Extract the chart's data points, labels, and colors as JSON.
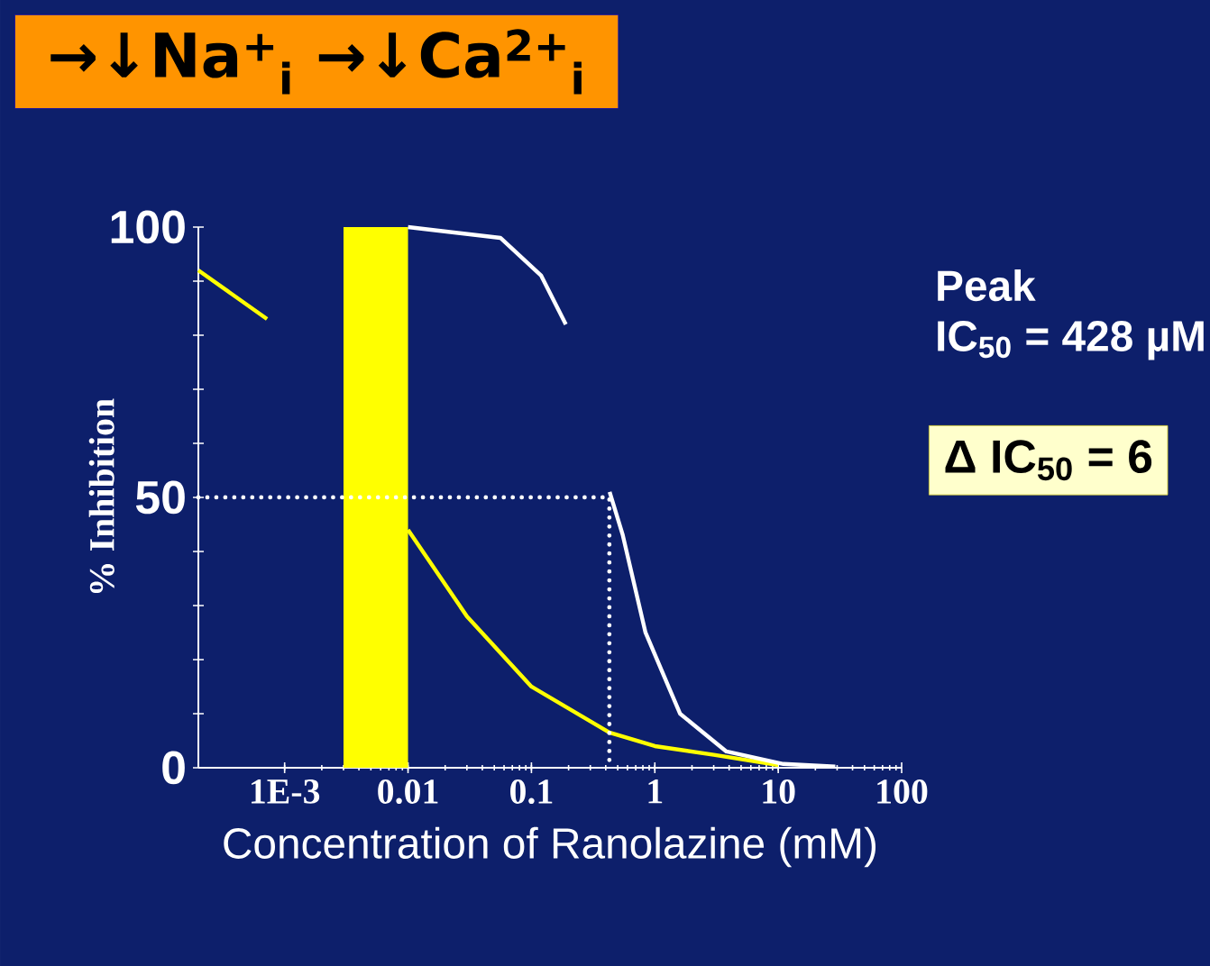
{
  "chart_data": {
    "type": "line",
    "xlabel": "Concentration of Ranolazine (mM)",
    "ylabel": "% Inhibition",
    "annotations": [
      "Peak",
      "IC$_{50}$ = 428 µM",
      "→↓Na$^{+}$$_{i}$  →↓Ca$^{2+}$$_{i}$",
      "Δ IC$_{50}$ =   6"
    ],
    "log": "x",
    "xlim": [
      0.0002,
      100
    ],
    "xticks": [
      {
        "value": 0.001,
        "label": "1E-3"
      },
      0.01,
      0.1,
      1,
      10,
      100
    ],
    "ylim": [
      0,
      100
    ],
    "yticks": [
      0,
      {
        "value": 10,
        "label": null
      },
      {
        "value": 20,
        "label": null
      },
      {
        "value": 30,
        "label": null
      },
      {
        "value": 40,
        "label": null
      },
      50,
      {
        "value": 60,
        "label": null
      },
      {
        "value": 70,
        "label": null
      },
      {
        "value": 80,
        "label": null
      },
      {
        "value": 90,
        "label": null
      },
      100
    ],
    "marker": "none",
    "bands": [
      {
        "axis": "x",
        "from": 0.003,
        "to": 0.01,
        "color": "#ffff00"
      }
    ],
    "series": [
      {
        "color": "#ffff00",
        "line_style": "solid",
        "x": [
          0.0002,
          0.00072,
          0.003,
          0.01,
          0.03,
          0.1,
          0.428,
          1,
          3,
          10
        ],
        "values": [
          92,
          83,
          null,
          44,
          28,
          15,
          6.5,
          4,
          2.4,
          0.5
        ]
      },
      {
        "color": "#ffffff",
        "line_style": "solid",
        "x": [
          0.01,
          0.056,
          0.12,
          0.19,
          0.3,
          0.43,
          0.55,
          0.84,
          1.6,
          3.8,
          11,
          29
        ],
        "values": [
          100,
          98,
          91,
          82,
          null,
          51,
          43,
          25,
          10,
          3,
          0.7,
          0.2
        ]
      },
      {
        "color": "#ffffff",
        "line_style": "dotted",
        "x": [
          0.0002,
          0.428,
          0.428
        ],
        "values": [
          50,
          50,
          0
        ]
      }
    ]
  }
}
